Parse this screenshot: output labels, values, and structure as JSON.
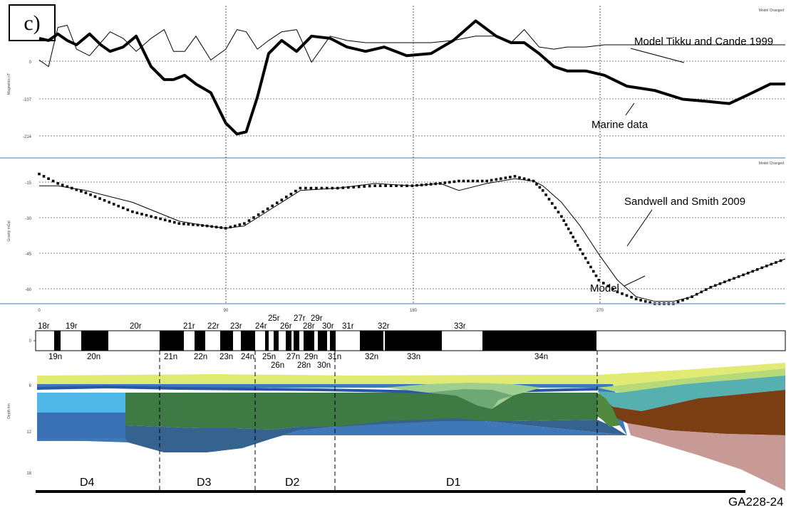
{
  "panel_letter": "c)",
  "figure_id": "GA228-24",
  "colors": {
    "panel_separator": "#7fa7cf",
    "gridline": "#555555",
    "marine_data": "#000000",
    "model_line": "#000000",
    "chron_normal": "#000000",
    "chron_reverse": "#ffffff",
    "sea": "#e1ea72",
    "basement_blue": "#3f78b8",
    "sediment_green": "#3e7a43",
    "upper_mantle_brown": "#7b3d12",
    "continental_pink": "#c79a96"
  },
  "chart_data": [
    {
      "type": "line",
      "name": "magnetics",
      "ylabel": "Magnetics nT",
      "status_text": "Model Changed",
      "yticks": [
        "0",
        "-107",
        "-214"
      ],
      "ylim": [
        -260,
        90
      ],
      "xlim": [
        0,
        400
      ],
      "series": [
        {
          "name": "Marine data",
          "style": "thick",
          "x": [
            0,
            5,
            10,
            15,
            20,
            27,
            33,
            38,
            45,
            52,
            60,
            67,
            72,
            78,
            84,
            92,
            100,
            106,
            111,
            117,
            123,
            130,
            138,
            146,
            156,
            165,
            175,
            185,
            197,
            210,
            222,
            234,
            245,
            253,
            260,
            268,
            276,
            283,
            293,
            303,
            315,
            330,
            345,
            358,
            370,
            380,
            392,
            400
          ],
          "y": [
            15,
            10,
            25,
            10,
            0,
            25,
            0,
            -15,
            -5,
            20,
            -50,
            -80,
            -80,
            -70,
            -90,
            -110,
            -180,
            -205,
            -200,
            -120,
            -20,
            10,
            -15,
            20,
            15,
            -5,
            -15,
            -5,
            -25,
            -20,
            10,
            55,
            20,
            5,
            5,
            -20,
            -50,
            -60,
            -60,
            -70,
            -95,
            -105,
            -125,
            -130,
            -135,
            -115,
            -90,
            -90
          ]
        },
        {
          "name": "Model Tikku and Cande 1999",
          "style": "thin",
          "x": [
            0,
            5,
            10,
            15,
            20,
            27,
            33,
            38,
            45,
            52,
            60,
            67,
            72,
            78,
            84,
            92,
            100,
            106,
            111,
            117,
            123,
            130,
            138,
            146,
            156,
            165,
            175,
            185,
            197,
            210,
            222,
            234,
            245,
            253,
            260,
            268,
            276,
            283,
            293,
            303,
            315,
            330,
            345,
            358,
            370,
            380,
            392,
            400
          ],
          "y": [
            -35,
            -50,
            40,
            45,
            -10,
            -25,
            5,
            30,
            15,
            -15,
            15,
            35,
            -15,
            -15,
            20,
            -35,
            -10,
            35,
            30,
            -10,
            10,
            30,
            35,
            -40,
            20,
            10,
            5,
            5,
            5,
            5,
            10,
            20,
            20,
            5,
            35,
            -5,
            -10,
            -5,
            -5,
            0,
            0,
            0,
            0,
            0,
            0,
            0,
            0,
            0
          ]
        }
      ],
      "annotations": [
        "Model Tikku and Cande 1999",
        "Marine data"
      ]
    },
    {
      "type": "line",
      "name": "gravity",
      "ylabel": "Gravity mGal",
      "status_text": "Model Changed",
      "yticks": [
        "-15",
        "-30",
        "-45",
        "-60"
      ],
      "ylim": [
        -65,
        -5
      ],
      "xlim": [
        0,
        400
      ],
      "series": [
        {
          "name": "Sandwell and Smith 2009",
          "style": "thin",
          "x": [
            0,
            10,
            25,
            50,
            75,
            90,
            100,
            110,
            120,
            130,
            140,
            160,
            180,
            200,
            215,
            225,
            240,
            255,
            265,
            270,
            280,
            290,
            300,
            310,
            320,
            330,
            340,
            350,
            360,
            370,
            380,
            390,
            400
          ],
          "y": [
            -15,
            -15,
            -17,
            -22,
            -30,
            -32,
            -33,
            -32,
            -27,
            -22,
            -17,
            -16,
            -14,
            -15,
            -14,
            -17,
            -14,
            -12,
            -13,
            -15,
            -22,
            -32,
            -44,
            -55,
            -62,
            -64,
            -64,
            -62,
            -58,
            -55,
            -52,
            -49,
            -46
          ]
        },
        {
          "name": "Model",
          "style": "dotted",
          "x": [
            0,
            10,
            25,
            50,
            75,
            90,
            100,
            110,
            120,
            130,
            140,
            160,
            180,
            200,
            215,
            225,
            240,
            255,
            265,
            270,
            280,
            290,
            300,
            310,
            320,
            330,
            340,
            350,
            360,
            370,
            380,
            390,
            400
          ],
          "y": [
            -10,
            -14,
            -18,
            -26,
            -31,
            -32,
            -33,
            -31,
            -26,
            -21,
            -16,
            -16,
            -15,
            -15,
            -14,
            -13,
            -13,
            -11,
            -13,
            -17,
            -28,
            -42,
            -55,
            -60,
            -63,
            -65,
            -65,
            -62,
            -58,
            -55,
            -52,
            -49,
            -46
          ]
        }
      ],
      "annotations": [
        "Sandwell and Smith 2009",
        "Model"
      ]
    }
  ],
  "x_axis": {
    "ticks": [
      "0",
      "90",
      "180",
      "270"
    ]
  },
  "chron": {
    "top_labels": [
      "18r",
      "19r",
      "20r",
      "21r",
      "22r",
      "23r",
      "24r",
      "25r",
      "26r",
      "27r",
      "28r",
      "29r",
      "30r",
      "31r",
      "32r",
      "33r"
    ],
    "bottom_labels": [
      "19n",
      "20n",
      "21n",
      "22n",
      "23n",
      "24n",
      "25n",
      "26n",
      "27n",
      "28n",
      "29n",
      "30n",
      "31n",
      "32n",
      "33n",
      "34n"
    ]
  },
  "section": {
    "depth_label": "Depth km",
    "depth_ticks": [
      "6",
      "12",
      "18"
    ],
    "domains": [
      "D4",
      "D3",
      "D2",
      "D1"
    ]
  }
}
